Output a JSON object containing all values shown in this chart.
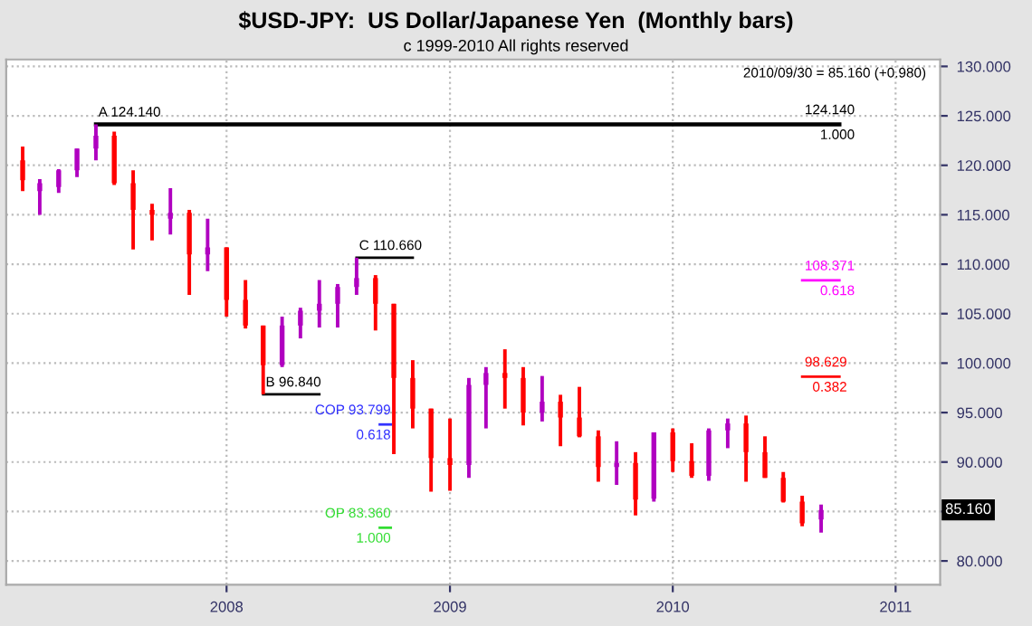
{
  "chart_data": {
    "type": "candlestick",
    "title": "$USD-JPY:  US Dollar/Japanese Yen  (Monthly bars)",
    "subtitle": "c 1999-2010 All rights reserved",
    "x": [
      "2007-02",
      "2007-03",
      "2007-04",
      "2007-05",
      "2007-06",
      "2007-07",
      "2007-08",
      "2007-09",
      "2007-10",
      "2007-11",
      "2007-12",
      "2008-01",
      "2008-02",
      "2008-03",
      "2008-04",
      "2008-05",
      "2008-06",
      "2008-07",
      "2008-08",
      "2008-09",
      "2008-10",
      "2008-11",
      "2008-12",
      "2009-01",
      "2009-02",
      "2009-03",
      "2009-04",
      "2009-05",
      "2009-06",
      "2009-07",
      "2009-08",
      "2009-09",
      "2009-10",
      "2009-11",
      "2009-12",
      "2010-01",
      "2010-02",
      "2010-03",
      "2010-04",
      "2010-05",
      "2010-06",
      "2010-07",
      "2010-08",
      "2010-09"
    ],
    "ohlc": [
      [
        120.5,
        121.9,
        117.4,
        118.5
      ],
      [
        117.4,
        118.6,
        115.0,
        118.2
      ],
      [
        117.8,
        119.6,
        117.2,
        119.5
      ],
      [
        119.5,
        121.7,
        118.8,
        121.7
      ],
      [
        121.7,
        124.14,
        120.5,
        123.0
      ],
      [
        123.0,
        123.4,
        118.0,
        118.2
      ],
      [
        118.2,
        119.5,
        111.5,
        115.5
      ],
      [
        115.5,
        116.1,
        112.4,
        115.0
      ],
      [
        114.6,
        117.7,
        113.0,
        115.2
      ],
      [
        115.2,
        115.5,
        106.9,
        111.0
      ],
      [
        111.0,
        114.6,
        109.3,
        111.7
      ],
      [
        111.7,
        111.7,
        104.7,
        106.4
      ],
      [
        106.4,
        108.4,
        103.5,
        103.8
      ],
      [
        103.8,
        103.8,
        96.84,
        99.8
      ],
      [
        99.8,
        104.7,
        99.6,
        103.8
      ],
      [
        103.8,
        105.6,
        102.5,
        105.3
      ],
      [
        105.3,
        108.4,
        103.6,
        106.0
      ],
      [
        106.0,
        108.0,
        103.6,
        107.7
      ],
      [
        107.7,
        110.66,
        106.9,
        108.6
      ],
      [
        108.6,
        108.9,
        103.3,
        106.0
      ],
      [
        106.0,
        106.0,
        90.8,
        98.5
      ],
      [
        98.5,
        100.3,
        93.4,
        95.4
      ],
      [
        95.4,
        95.4,
        87.0,
        90.4
      ],
      [
        90.4,
        94.4,
        87.1,
        89.7
      ],
      [
        89.7,
        98.5,
        88.4,
        97.8
      ],
      [
        97.8,
        99.6,
        93.4,
        99.0
      ],
      [
        99.0,
        101.4,
        95.4,
        98.5
      ],
      [
        98.5,
        99.6,
        93.7,
        95.0
      ],
      [
        95.0,
        98.7,
        94.1,
        96.1
      ],
      [
        96.1,
        96.8,
        91.6,
        94.5
      ],
      [
        94.5,
        97.6,
        92.5,
        92.6
      ],
      [
        92.6,
        93.2,
        88.0,
        89.5
      ],
      [
        89.5,
        92.1,
        87.7,
        89.9
      ],
      [
        89.9,
        91.0,
        84.6,
        86.2
      ],
      [
        86.3,
        93.0,
        86.0,
        93.0
      ],
      [
        93.0,
        93.4,
        89.0,
        90.1
      ],
      [
        90.1,
        91.9,
        88.4,
        88.6
      ],
      [
        88.6,
        93.4,
        88.1,
        93.2
      ],
      [
        93.2,
        94.4,
        91.4,
        93.9
      ],
      [
        93.9,
        94.7,
        88.0,
        91.0
      ],
      [
        91.0,
        92.6,
        88.4,
        88.4
      ],
      [
        88.4,
        89.0,
        85.9,
        86.0
      ],
      [
        86.0,
        86.6,
        83.5,
        83.8
      ],
      [
        84.2,
        85.7,
        82.87,
        85.16
      ]
    ],
    "colors": [
      "#ff0000",
      "#b000c0",
      "#b000c0",
      "#b000c0",
      "#b000c0",
      "#ff0000",
      "#ff0000",
      "#ff0000",
      "#b000c0",
      "#ff0000",
      "#b000c0",
      "#ff0000",
      "#ff0000",
      "#ff0000",
      "#b000c0",
      "#b000c0",
      "#b000c0",
      "#b000c0",
      "#b000c0",
      "#ff0000",
      "#ff0000",
      "#ff0000",
      "#ff0000",
      "#ff0000",
      "#b000c0",
      "#b000c0",
      "#ff0000",
      "#ff0000",
      "#b000c0",
      "#ff0000",
      "#ff0000",
      "#ff0000",
      "#b000c0",
      "#ff0000",
      "#b000c0",
      "#ff0000",
      "#ff0000",
      "#b000c0",
      "#b000c0",
      "#ff0000",
      "#ff0000",
      "#ff0000",
      "#ff0000",
      "#b000c0"
    ],
    "series": [
      {
        "type": "line",
        "color": "#000000",
        "x": [
          "2007-06",
          "2010-10"
        ],
        "values": [
          124.14,
          124.14
        ]
      },
      {
        "type": "line",
        "color": "#000000",
        "x": [
          "2008-03",
          "2008-06"
        ],
        "values": [
          96.84,
          96.84
        ]
      },
      {
        "type": "line",
        "color": "#000000",
        "x": [
          "2008-08",
          "2008-11"
        ],
        "values": [
          110.66,
          110.66
        ]
      },
      {
        "type": "line",
        "color": "#ff00ff",
        "x": [
          "2010-08",
          "2010-10"
        ],
        "values": [
          108.371,
          108.371
        ]
      },
      {
        "type": "line",
        "color": "#ff0000",
        "x": [
          "2010-08",
          "2010-10"
        ],
        "values": [
          98.629,
          98.629
        ]
      },
      {
        "type": "line",
        "color": "#3333ff",
        "x": [
          "2008-09-08",
          "2008-09-26"
        ],
        "values": [
          93.799,
          93.799
        ]
      },
      {
        "type": "line",
        "color": "#33dd33",
        "x": [
          "2008-09-08",
          "2008-09-26"
        ],
        "values": [
          83.36,
          83.36
        ]
      }
    ],
    "annotations": [
      {
        "text": "A 124.140",
        "x": "2007-06",
        "y": 124.14
      },
      {
        "text": "B 96.840",
        "x": "2008-03",
        "y": 96.84
      },
      {
        "text": "C 110.660",
        "x": "2008-08",
        "y": 110.66
      },
      {
        "text": "COP 93.799\n0.618",
        "x": "2008-09-26",
        "y": 93.799
      },
      {
        "text": "OP 83.360\n1.000",
        "x": "2008-09-26",
        "y": 83.36
      },
      {
        "text": "124.140\n1.000",
        "x": "2010-08",
        "y": 124.14
      },
      {
        "text": "108.371\n0.618",
        "x": "2010-08",
        "y": 108.371
      },
      {
        "text": "98.629\n0.382",
        "x": "2010-08",
        "y": 98.629
      },
      "2010/09/30 = 85.160 (+0.980)",
      {
        "text": "85.160",
        "y": 85.16
      }
    ],
    "xlim": [
      "2007-01-05",
      "2011-03-15"
    ],
    "xticks": [
      "2008",
      "2009",
      "2010",
      "2011"
    ],
    "ylim": [
      77.6,
      130.7
    ],
    "yticks": [
      {
        "value": 80,
        "label": "80.000"
      },
      {
        "value": 85,
        "label": null
      },
      {
        "value": 90,
        "label": "90.000"
      },
      {
        "value": 95,
        "label": "95.000"
      },
      {
        "value": 100,
        "label": "100.000"
      },
      {
        "value": 105,
        "label": "105.000"
      },
      {
        "value": 110,
        "label": "110.000"
      },
      {
        "value": 115,
        "label": "115.000"
      },
      {
        "value": 120,
        "label": "120.000"
      },
      {
        "value": 125,
        "label": "125.000"
      },
      {
        "value": 130,
        "label": "130.000"
      }
    ],
    "grid": true
  }
}
